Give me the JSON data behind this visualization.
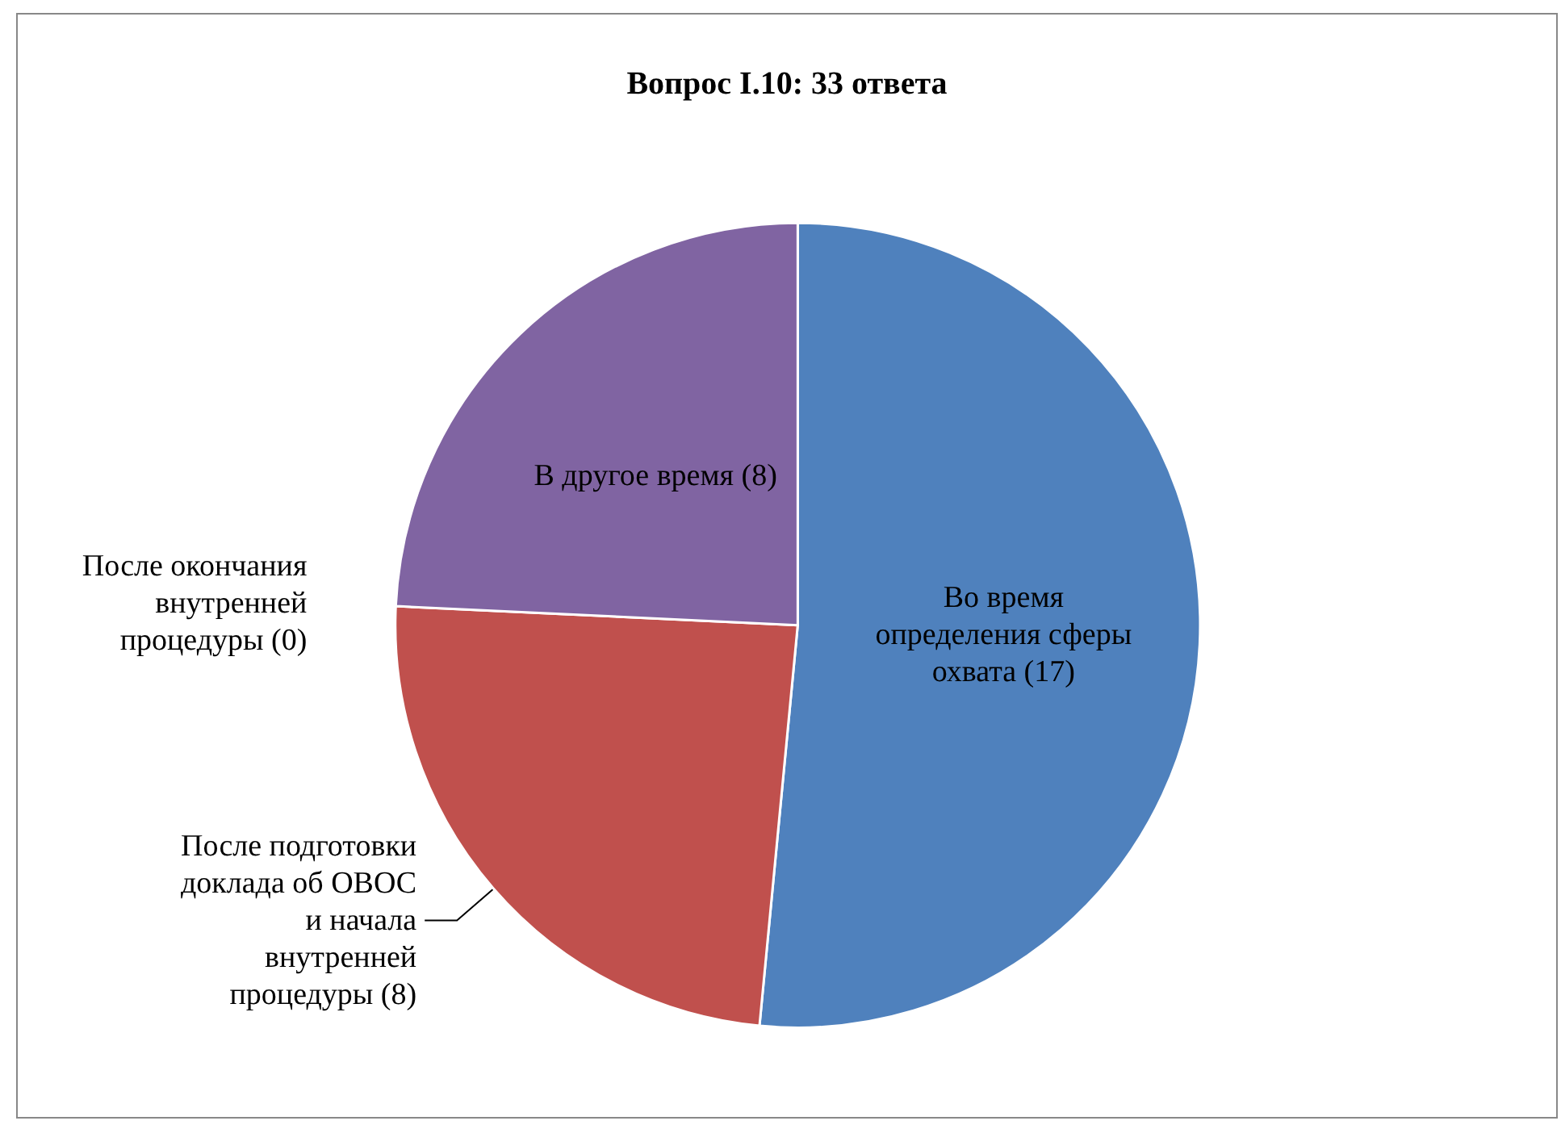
{
  "chart_data": {
    "type": "pie",
    "title": "Вопрос I.10: 33 ответа",
    "categories": [
      "Во время определения сферы охвата",
      "После подготовки доклада об ОВОС и начала внутренней процедуры",
      "После окончания внутренней процедуры",
      "В другое время"
    ],
    "values": [
      17,
      8,
      0,
      8
    ],
    "value_labels": [
      "(17)",
      "(8)",
      "(0)",
      "(8)"
    ],
    "colors": [
      "#4f81bd",
      "#c0504d",
      "#9bbb59",
      "#8064a2"
    ],
    "legend": false
  }
}
